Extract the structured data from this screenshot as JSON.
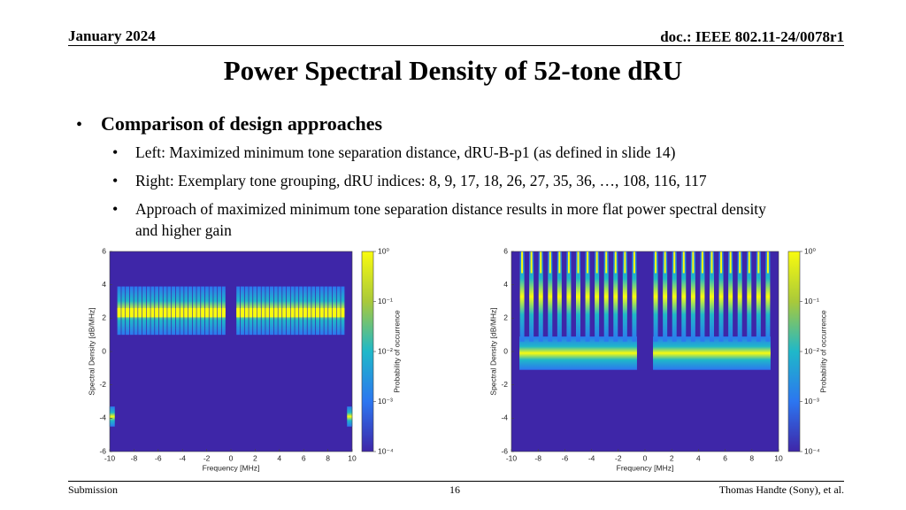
{
  "header": {
    "date": "January 2024",
    "doc": "doc.: IEEE 802.11-24/0078r1"
  },
  "title": "Power Spectral Density of 52-tone dRU",
  "bullets": {
    "heading": "Comparison of design approaches",
    "items": [
      "Left: Maximized minimum tone separation distance, dRU-B-p1 (as defined in slide 14)",
      "Right: Exemplary tone grouping, dRU indices: 8, 9, 17, 18, 26, 27, 35, 36, …, 108, 116, 117",
      "Approach of maximized minimum tone separation distance results in more flat power spectral density and higher gain"
    ]
  },
  "figures": [
    {
      "xlabel": "Frequency [MHz]",
      "ylabel": "Spectral Density [dB/MHz]",
      "xlim": [
        -10,
        10
      ],
      "xticks": [
        -10,
        -8,
        -6,
        -4,
        -2,
        0,
        2,
        4,
        6,
        8,
        10
      ],
      "ylim": [
        -6,
        6
      ],
      "yticks": [
        -6,
        -4,
        -2,
        0,
        2,
        4,
        6
      ],
      "colorbar": {
        "label": "Probability of occurrence",
        "log": true,
        "lim": [
          0.0001,
          1
        ],
        "ticks": [
          {
            "value": 1,
            "label": "10⁰"
          },
          {
            "value": 0.1,
            "label": "10⁻¹"
          },
          {
            "value": 0.01,
            "label": "10⁻²"
          },
          {
            "value": 0.001,
            "label": "10⁻³"
          },
          {
            "value": 0.0001,
            "label": "10⁻⁴"
          }
        ]
      }
    },
    {
      "xlabel": "Frequency [MHz]",
      "ylabel": "Spectral Density [dB/MHz]",
      "xlim": [
        -10,
        10
      ],
      "xticks": [
        -10,
        -8,
        -6,
        -4,
        -2,
        0,
        2,
        4,
        6,
        8,
        10
      ],
      "ylim": [
        -6,
        6
      ],
      "yticks": [
        -6,
        -4,
        -2,
        0,
        2,
        4,
        6
      ],
      "colorbar": {
        "label": "Probability of occurrence",
        "log": true,
        "lim": [
          0.0001,
          1
        ],
        "ticks": [
          {
            "value": 1,
            "label": "10⁰"
          },
          {
            "value": 0.1,
            "label": "10⁻¹"
          },
          {
            "value": 0.01,
            "label": "10⁻²"
          },
          {
            "value": 0.001,
            "label": "10⁻³"
          },
          {
            "value": 0.0001,
            "label": "10⁻⁴"
          }
        ]
      }
    }
  ],
  "footer": {
    "left": "Submission",
    "page": "16",
    "right": "Thomas Handte (Sony), et al."
  }
}
